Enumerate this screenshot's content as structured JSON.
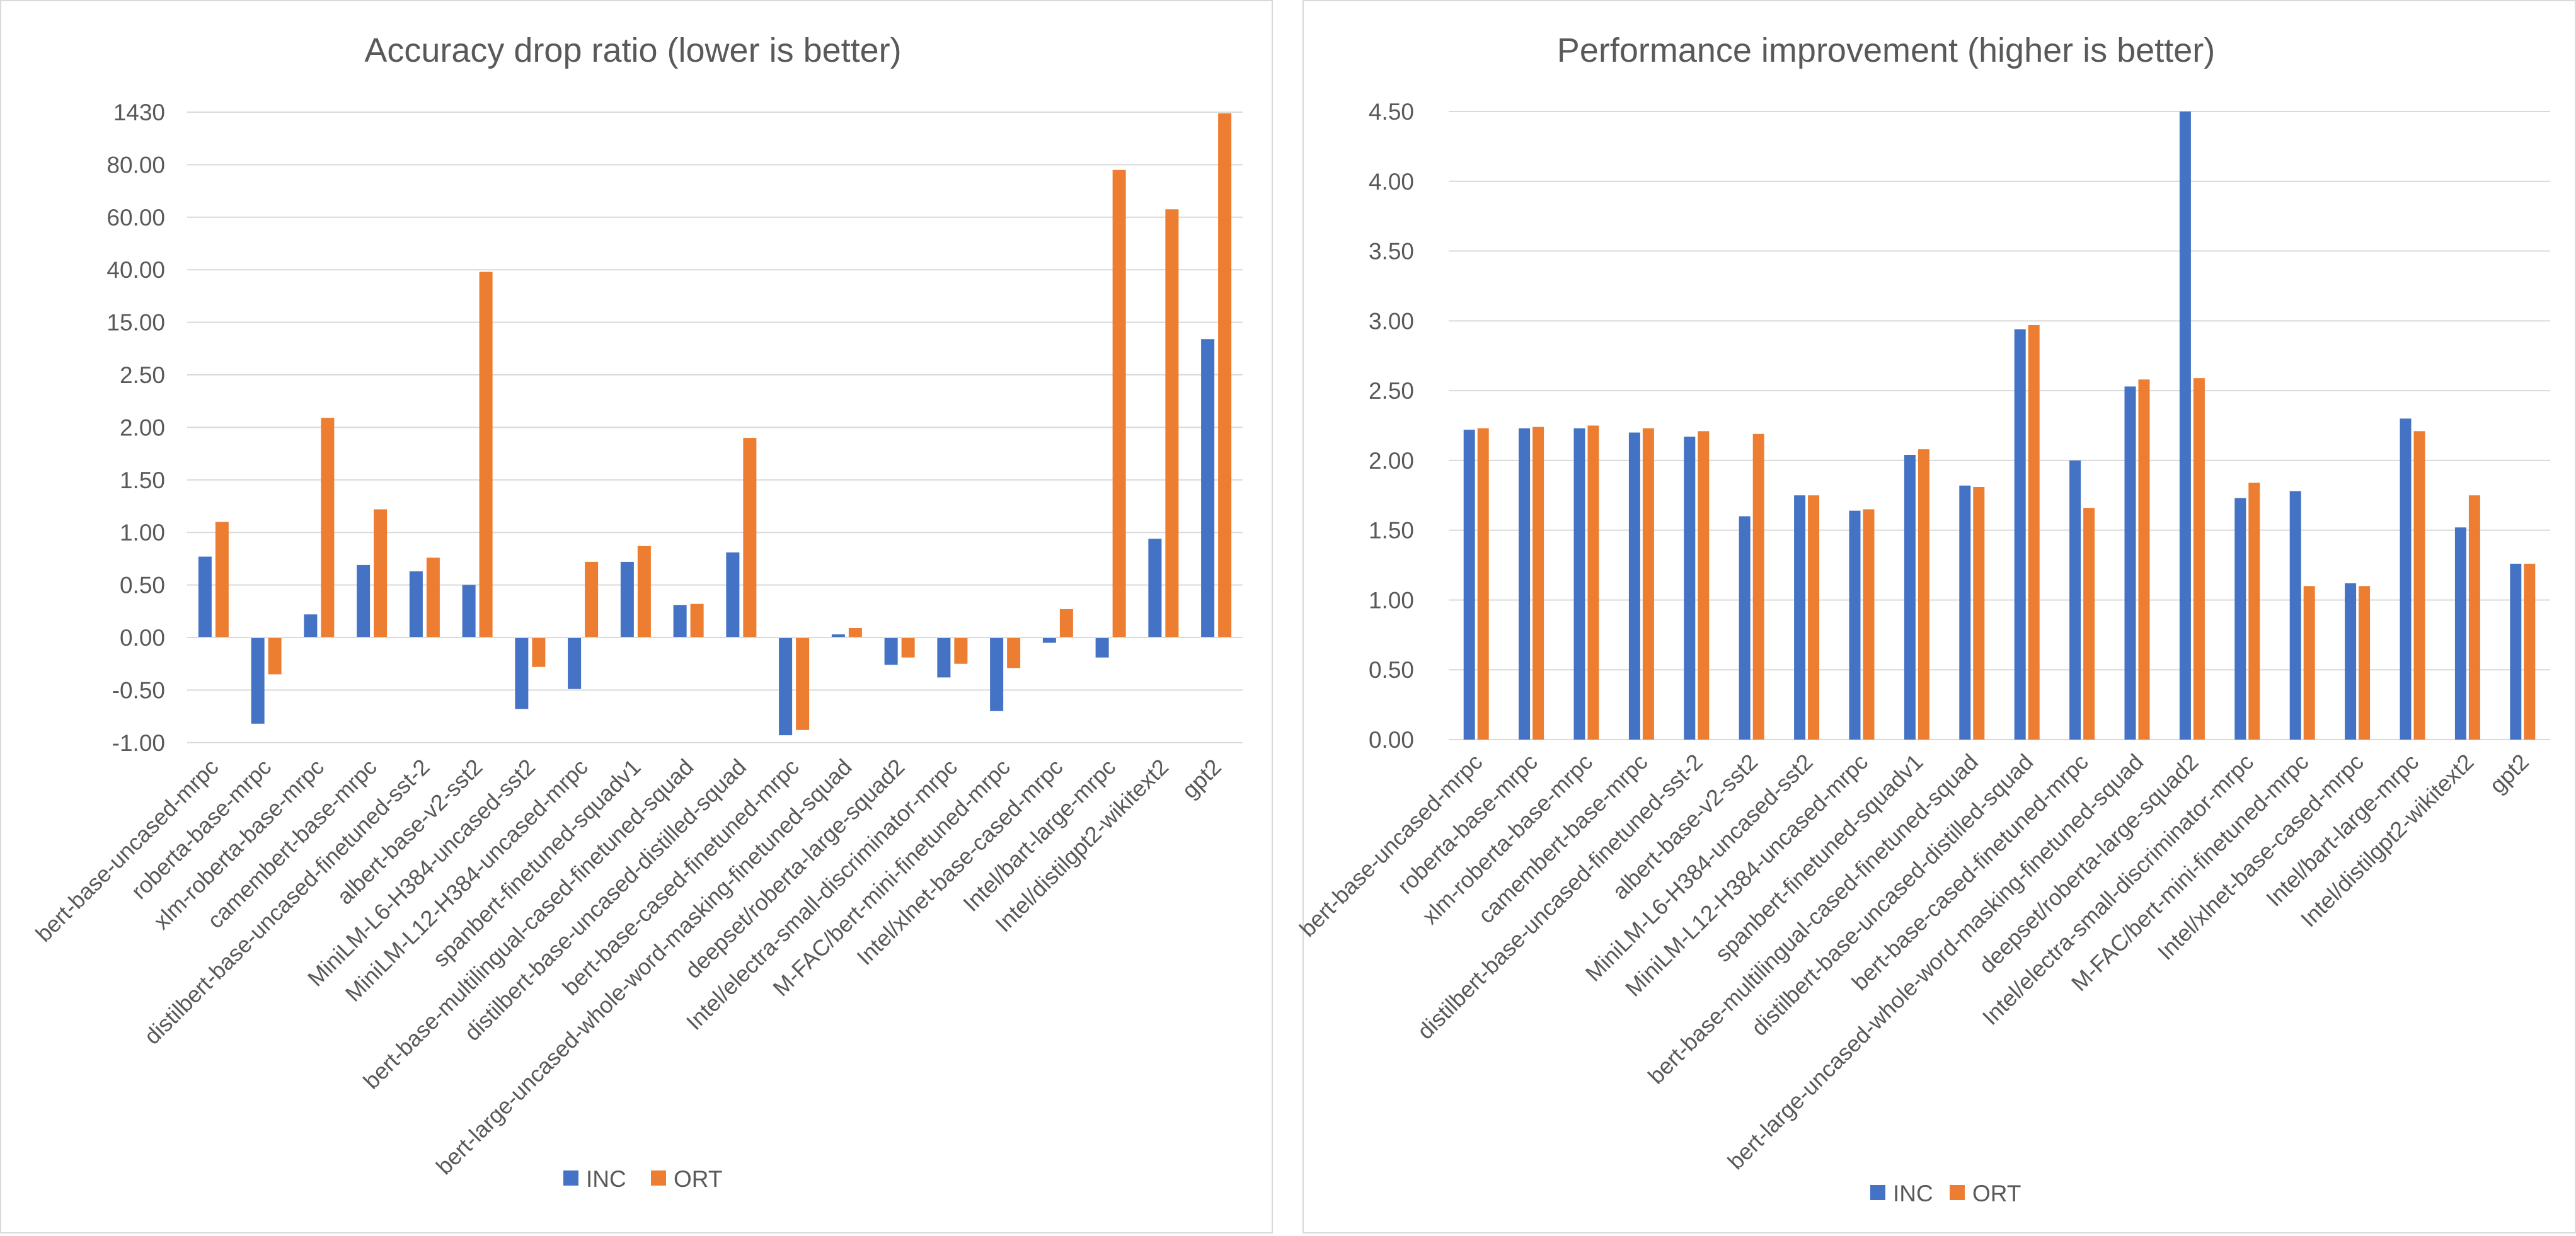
{
  "chart_data": [
    {
      "type": "bar",
      "title": "Accuracy drop ratio (lower is better)",
      "y_axis_scale": "custom ladder (tick labels not evenly spaced in value)",
      "yticks": [
        "-1.00",
        "-0.50",
        "0.00",
        "0.50",
        "1.00",
        "1.50",
        "2.00",
        "2.50",
        "15.00",
        "40.00",
        "60.00",
        "80.00",
        "1430"
      ],
      "grid": "horizontal",
      "legend_position": "bottom",
      "categories": [
        "bert-base-uncased-mrpc",
        "roberta-base-mrpc",
        "xlm-roberta-base-mrpc",
        "camembert-base-mrpc",
        "distilbert-base-uncased-finetuned-sst-2",
        "albert-base-v2-sst2",
        "MiniLM-L6-H384-uncased-sst2",
        "MiniLM-L12-H384-uncased-mrpc",
        "spanbert-finetuned-squadv1",
        "bert-base-multilingual-cased-finetuned-squad",
        "distilbert-base-uncased-distilled-squad",
        "bert-base-cased-finetuned-mrpc",
        "bert-large-uncased-whole-word-masking-finetuned-squad",
        "deepset/roberta-large-squad2",
        "Intel/electra-small-discriminator-mrpc",
        "M-FAC/bert-mini-finetuned-mrpc",
        "Intel/xlnet-base-cased-mrpc",
        "Intel/bart-large-mrpc",
        "Intel/distilgpt2-wikitext2",
        "gpt2"
      ],
      "series": [
        {
          "name": "INC",
          "color": "#4472c4",
          "values": [
            0.77,
            -0.82,
            0.22,
            0.69,
            0.63,
            0.5,
            -0.68,
            -0.49,
            0.72,
            0.31,
            0.81,
            -0.93,
            0.03,
            -0.26,
            -0.38,
            -0.7,
            -0.05,
            -0.19,
            0.94,
            11.0
          ]
        },
        {
          "name": "ORT",
          "color": "#ed7d31",
          "values": [
            1.1,
            -0.35,
            2.09,
            1.22,
            0.76,
            39.0,
            -0.28,
            0.72,
            0.87,
            0.32,
            1.9,
            -0.88,
            0.09,
            -0.19,
            -0.25,
            -0.29,
            0.27,
            78.0,
            63.0,
            1400.0
          ]
        }
      ]
    },
    {
      "type": "bar",
      "title": "Performance improvement (higher is better)",
      "ylim": [
        0,
        4.5
      ],
      "yticks": [
        "0.00",
        "0.50",
        "1.00",
        "1.50",
        "2.00",
        "2.50",
        "3.00",
        "3.50",
        "4.00",
        "4.50"
      ],
      "grid": "horizontal",
      "legend_position": "bottom",
      "categories": [
        "bert-base-uncased-mrpc",
        "roberta-base-mrpc",
        "xlm-roberta-base-mrpc",
        "camembert-base-mrpc",
        "distilbert-base-uncased-finetuned-sst-2",
        "albert-base-v2-sst2",
        "MiniLM-L6-H384-uncased-sst2",
        "MiniLM-L12-H384-uncased-mrpc",
        "spanbert-finetuned-squadv1",
        "bert-base-multilingual-cased-finetuned-squad",
        "distilbert-base-uncased-distilled-squad",
        "bert-base-cased-finetuned-mrpc",
        "bert-large-uncased-whole-word-masking-finetuned-squad",
        "deepset/roberta-large-squad2",
        "Intel/electra-small-discriminator-mrpc",
        "M-FAC/bert-mini-finetuned-mrpc",
        "Intel/xlnet-base-cased-mrpc",
        "Intel/bart-large-mrpc",
        "Intel/distilgpt2-wikitext2",
        "gpt2"
      ],
      "series": [
        {
          "name": "INC",
          "color": "#4472c4",
          "values": [
            2.22,
            2.23,
            2.23,
            2.2,
            2.17,
            1.6,
            1.75,
            1.64,
            2.04,
            1.82,
            2.94,
            2.0,
            2.53,
            4.5,
            1.73,
            1.78,
            1.12,
            2.3,
            1.52,
            1.26
          ]
        },
        {
          "name": "ORT",
          "color": "#ed7d31",
          "values": [
            2.23,
            2.24,
            2.25,
            2.23,
            2.21,
            2.19,
            1.75,
            1.65,
            2.08,
            1.81,
            2.97,
            1.66,
            2.58,
            2.59,
            1.84,
            1.1,
            1.1,
            2.21,
            1.75,
            1.26
          ]
        }
      ]
    }
  ]
}
